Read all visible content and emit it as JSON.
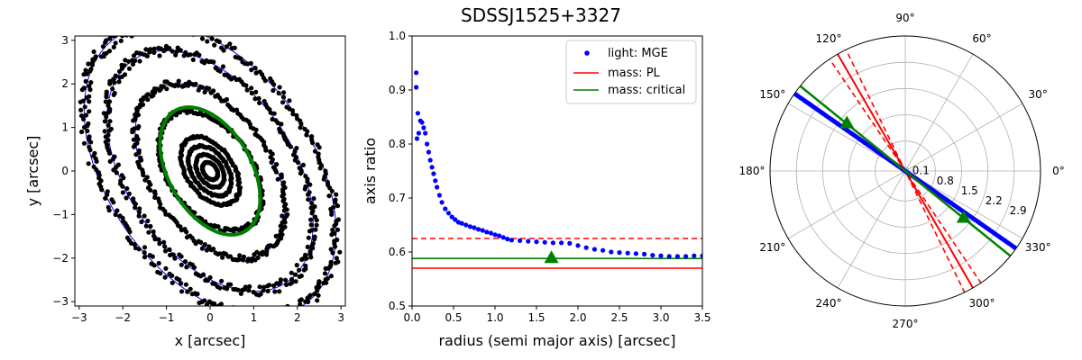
{
  "figure_title": "SDSSJ1525+3327",
  "colors": {
    "light": "#0000ff",
    "pl": "#ff0000",
    "critical": "#008000",
    "contour": "#000000",
    "grid": "#b0b0b0"
  },
  "chart_data": [
    {
      "type": "scatter",
      "panel": "contours",
      "xlabel": "x [arcsec]",
      "ylabel": "y [arcsec]",
      "xlim": [
        -3.1,
        3.1
      ],
      "ylim": [
        -3.1,
        3.1
      ],
      "x_ticks": [
        "−3",
        "−2",
        "−1",
        "0",
        "1",
        "2",
        "3"
      ],
      "y_ticks": [
        "−3",
        "−2",
        "−1",
        "0",
        "1",
        "2",
        "3"
      ],
      "x_tick_values": [
        -3,
        -2,
        -1,
        0,
        1,
        2,
        3
      ],
      "y_tick_values": [
        -3,
        -2,
        -1,
        0,
        1,
        2,
        3
      ],
      "contours": [
        {
          "a": 0.22,
          "b": 0.15,
          "pa_deg": 125
        },
        {
          "a": 0.42,
          "b": 0.27,
          "pa_deg": 125
        },
        {
          "a": 0.64,
          "b": 0.4,
          "pa_deg": 125
        },
        {
          "a": 0.88,
          "b": 0.54,
          "pa_deg": 125
        },
        {
          "a": 1.55,
          "b": 0.95,
          "pa_deg": 125
        },
        {
          "a": 2.25,
          "b": 1.38,
          "pa_deg": 125
        },
        {
          "a": 3.1,
          "b": 1.9,
          "pa_deg": 125
        },
        {
          "a": 3.75,
          "b": 2.35,
          "pa_deg": 125
        }
      ],
      "critical_curve": {
        "a": 1.6,
        "b": 0.95,
        "pa_deg": 120,
        "center": [
          0,
          0
        ]
      }
    },
    {
      "type": "scatter",
      "panel": "axis_ratio",
      "xlabel": "radius (semi major axis) [arcsec]",
      "ylabel": "axis ratio",
      "xlim": [
        0,
        3.5
      ],
      "ylim": [
        0.5,
        1.0
      ],
      "x_ticks": [
        "0.0",
        "0.5",
        "1.0",
        "1.5",
        "2.0",
        "2.5",
        "3.0",
        "3.5"
      ],
      "y_ticks": [
        "0.5",
        "0.6",
        "0.7",
        "0.8",
        "0.9",
        "1.0"
      ],
      "x_tick_values": [
        0,
        0.5,
        1.0,
        1.5,
        2.0,
        2.5,
        3.0,
        3.5
      ],
      "y_tick_values": [
        0.5,
        0.6,
        0.7,
        0.8,
        0.9,
        1.0
      ],
      "legend": {
        "placement": "top-right",
        "entries": [
          "light: MGE",
          "mass: PL",
          "mass: critical"
        ]
      },
      "series": [
        {
          "name": "light: MGE",
          "marker": "dot",
          "x": [
            0.05,
            0.05,
            0.06,
            0.07,
            0.08,
            0.1,
            0.12,
            0.14,
            0.16,
            0.18,
            0.2,
            0.22,
            0.24,
            0.26,
            0.28,
            0.3,
            0.33,
            0.36,
            0.4,
            0.44,
            0.48,
            0.52,
            0.56,
            0.6,
            0.65,
            0.7,
            0.75,
            0.8,
            0.85,
            0.9,
            0.95,
            1.0,
            1.05,
            1.1,
            1.15,
            1.2,
            1.3,
            1.4,
            1.5,
            1.6,
            1.7,
            1.8,
            1.9,
            2.0,
            2.1,
            2.2,
            2.3,
            2.4,
            2.5,
            2.6,
            2.7,
            2.8,
            2.9,
            3.0,
            3.1,
            3.2,
            3.3,
            3.4,
            3.5
          ],
          "y": [
            0.932,
            0.905,
            0.81,
            0.857,
            0.82,
            0.843,
            0.84,
            0.83,
            0.82,
            0.8,
            0.785,
            0.77,
            0.757,
            0.745,
            0.732,
            0.72,
            0.705,
            0.692,
            0.68,
            0.672,
            0.665,
            0.66,
            0.655,
            0.653,
            0.65,
            0.647,
            0.645,
            0.642,
            0.64,
            0.637,
            0.635,
            0.632,
            0.63,
            0.627,
            0.624,
            0.622,
            0.621,
            0.62,
            0.619,
            0.618,
            0.617,
            0.617,
            0.616,
            0.612,
            0.608,
            0.605,
            0.603,
            0.6,
            0.599,
            0.598,
            0.597,
            0.596,
            0.594,
            0.593,
            0.592,
            0.592,
            0.592,
            0.593,
            0.593
          ]
        },
        {
          "name": "mass: PL",
          "line": "hline",
          "y": 0.57
        },
        {
          "name": "mass: critical",
          "line": "hline",
          "y": 0.588
        }
      ],
      "pl_error_y": 0.625,
      "critical_marker": {
        "x": 1.68,
        "y": 0.588
      }
    },
    {
      "type": "line",
      "panel": "polar",
      "theta_ticks": [
        "0°",
        "30°",
        "60°",
        "90°",
        "120°",
        "150°",
        "180°",
        "210°",
        "240°",
        "270°",
        "300°",
        "330°"
      ],
      "r_ticks": [
        "0.1",
        "0.8",
        "1.5",
        "2.2",
        "2.9"
      ],
      "r_tick_values": [
        0.1,
        0.8,
        1.5,
        2.2,
        2.9
      ],
      "r_max": 3.6,
      "light_pa_deg": 145,
      "light_r_range": [
        0.0,
        3.6
      ],
      "pl_pa_deg": 120,
      "pl_error_deg": [
        116,
        124
      ],
      "critical_pa_deg": 141,
      "critical_marker_r": 2.0
    }
  ]
}
